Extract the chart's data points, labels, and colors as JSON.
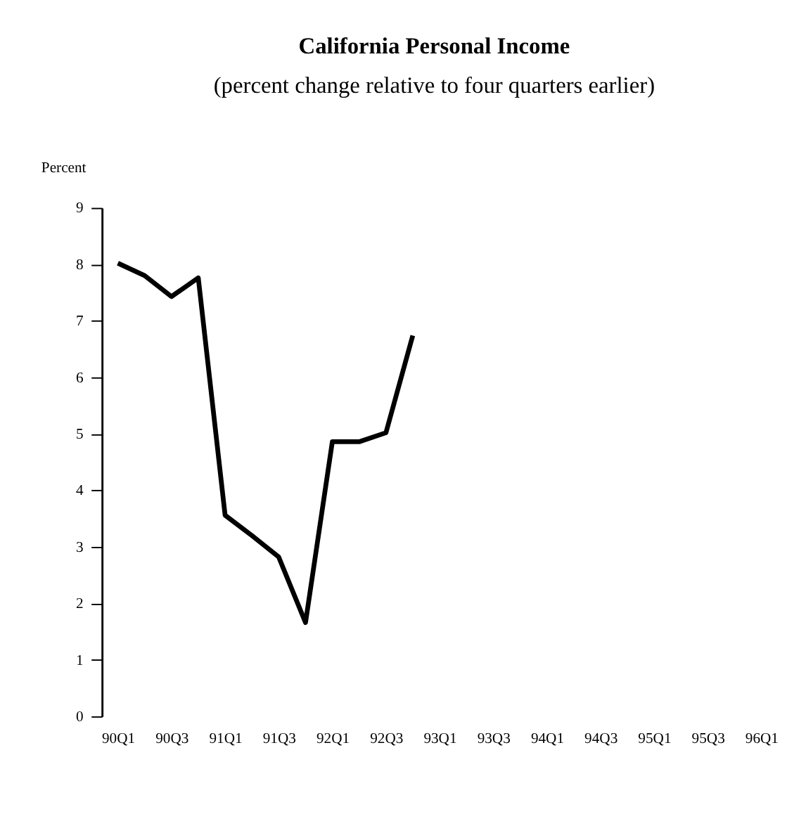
{
  "chart_data": {
    "type": "line",
    "title": "California Personal Income",
    "subtitle": "(percent  change relative to four quarters earlier)",
    "ylabel": "Percent",
    "categories": [
      "90Q1",
      null,
      "90Q3",
      null,
      "91Q1",
      null,
      "91Q3",
      null,
      "92Q1",
      null,
      "92Q3",
      null,
      "93Q1",
      null,
      "93Q3",
      null,
      "94Q1",
      null,
      "94Q3",
      null,
      "95Q1",
      null,
      "95Q3",
      null,
      "96Q1"
    ],
    "series": [
      {
        "color": "#000000",
        "values": [
          8.02,
          7.8,
          7.43,
          7.76,
          3.56,
          3.2,
          2.82,
          1.66,
          4.86,
          4.86,
          5.02,
          6.74,
          null,
          null,
          null,
          null,
          null,
          null,
          null,
          null,
          null,
          null,
          null,
          null,
          null
        ]
      }
    ],
    "ylim": [
      0,
      9
    ],
    "yticks": [
      0,
      1,
      2,
      3,
      4,
      5,
      6,
      7,
      8,
      9
    ],
    "grid": false,
    "marker": "none",
    "line_style": "solid"
  }
}
